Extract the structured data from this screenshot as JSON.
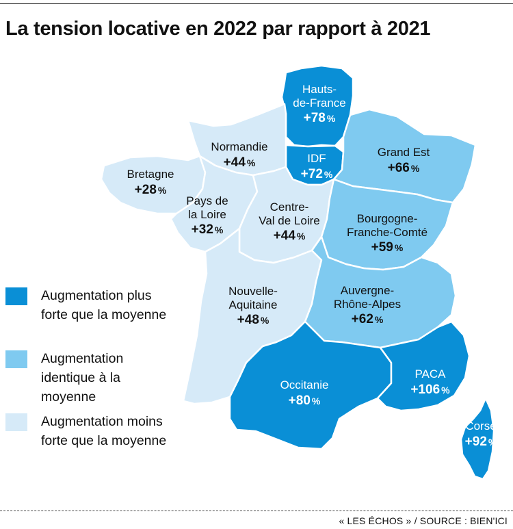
{
  "title": "La tension locative en 2022 par rapport à 2021",
  "source": "« LES ÉCHOS » / SOURCE : BIEN'ICI",
  "colors": {
    "strong": "#0a8fd6",
    "same": "#7fcaf0",
    "weak": "#d6eaf8"
  },
  "legend": [
    {
      "category": "strong",
      "label": "Augmentation plus forte que la moyenne"
    },
    {
      "category": "same",
      "label": "Augmentation identique à la moyenne"
    },
    {
      "category": "weak",
      "label": "Augmentation moins forte que la moyenne"
    }
  ],
  "regions": [
    {
      "id": "hauts-de-france",
      "name_lines": [
        "Hauts-",
        "de-France"
      ],
      "value": "+78",
      "category": "strong"
    },
    {
      "id": "idf",
      "name_lines": [
        "IDF"
      ],
      "value": "+72",
      "category": "strong"
    },
    {
      "id": "normandie",
      "name_lines": [
        "Normandie"
      ],
      "value": "+44",
      "category": "weak"
    },
    {
      "id": "grand-est",
      "name_lines": [
        "Grand Est"
      ],
      "value": "+66",
      "category": "same"
    },
    {
      "id": "bretagne",
      "name_lines": [
        "Bretagne"
      ],
      "value": "+28",
      "category": "weak"
    },
    {
      "id": "pays-de-la-loire",
      "name_lines": [
        "Pays de",
        "la Loire"
      ],
      "value": "+32",
      "category": "weak"
    },
    {
      "id": "centre-val-de-loire",
      "name_lines": [
        "Centre-",
        "Val de Loire"
      ],
      "value": "+44",
      "category": "weak"
    },
    {
      "id": "bourgogne-franche-comte",
      "name_lines": [
        "Bourgogne-",
        "Franche-Comté"
      ],
      "value": "+59",
      "category": "same"
    },
    {
      "id": "nouvelle-aquitaine",
      "name_lines": [
        "Nouvelle-",
        "Aquitaine"
      ],
      "value": "+48",
      "category": "weak"
    },
    {
      "id": "auvergne-rhone-alpes",
      "name_lines": [
        "Auvergne-",
        "Rhône-Alpes"
      ],
      "value": "+62",
      "category": "same"
    },
    {
      "id": "occitanie",
      "name_lines": [
        "Occitanie"
      ],
      "value": "+80",
      "category": "strong"
    },
    {
      "id": "paca",
      "name_lines": [
        "PACA"
      ],
      "value": "+106",
      "category": "strong"
    },
    {
      "id": "corse",
      "name_lines": [
        "Corse"
      ],
      "value": "+92",
      "category": "strong"
    }
  ],
  "percent_sign": "%"
}
